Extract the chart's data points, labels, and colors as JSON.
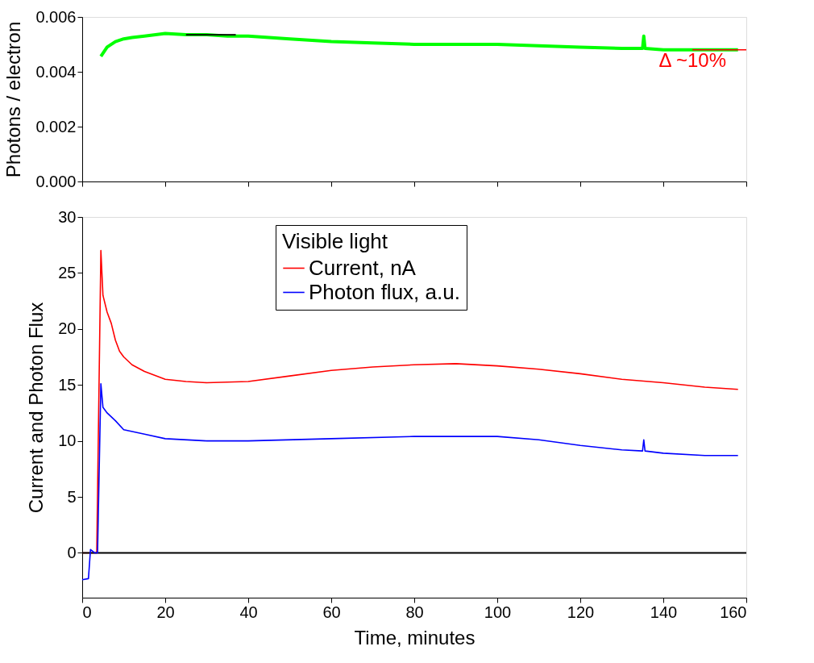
{
  "chart_data": [
    {
      "type": "line",
      "ylabel": "Photons / electron",
      "xlim": [
        0,
        160
      ],
      "xticks": [
        0,
        20,
        40,
        60,
        80,
        100,
        120,
        140,
        160
      ],
      "ylim": [
        0,
        0.006
      ],
      "yticks": [
        {
          "value": 0,
          "label": "0.000"
        },
        {
          "value": 0.002,
          "label": "0.002"
        },
        {
          "value": 0.004,
          "label": "0.004"
        },
        {
          "value": 0.006,
          "label": "0.006"
        }
      ],
      "tick_labels": "y",
      "grid": false,
      "series": [
        {
          "color": "#00ff00",
          "x": [
            4.5,
            6,
            8,
            10,
            12,
            15,
            20,
            25,
            30,
            35,
            40,
            50,
            60,
            70,
            80,
            90,
            100,
            110,
            120,
            130,
            135,
            135.3,
            135.6,
            140,
            150,
            158
          ],
          "values": [
            0.00456,
            0.0049,
            0.0051,
            0.0052,
            0.00525,
            0.0053,
            0.0054,
            0.00535,
            0.00535,
            0.0053,
            0.0053,
            0.0052,
            0.0051,
            0.00505,
            0.005,
            0.005,
            0.005,
            0.00495,
            0.0049,
            0.00485,
            0.00485,
            0.0053,
            0.00485,
            0.0048,
            0.0048,
            0.0048
          ]
        },
        {
          "color": "#000000",
          "x": [
            25,
            37
          ],
          "values": [
            0.00535,
            0.00535
          ]
        },
        {
          "color": "#ff0000",
          "x": [
            147,
            160
          ],
          "values": [
            0.0048,
            0.0048
          ]
        }
      ],
      "annotations": [
        "Δ ~10%"
      ]
    },
    {
      "type": "line",
      "xlabel": "Time, minutes",
      "ylabel": "Current and Photon Flux",
      "xlim": [
        0,
        160
      ],
      "xticks": [
        0,
        20,
        40,
        60,
        80,
        100,
        120,
        140,
        160
      ],
      "ylim": [
        -4,
        30
      ],
      "yticks": [
        0,
        5,
        10,
        15,
        20,
        25,
        30
      ],
      "grid": false,
      "legend": "top",
      "legend_title": "Visible light",
      "ref_lines": [
        {
          "axis": "y",
          "value": 0,
          "color": "#000000"
        }
      ],
      "series": [
        {
          "name": "Current, nA",
          "color": "#ff0000",
          "x": [
            0,
            3.5,
            4.5,
            5,
            6,
            7,
            8,
            9,
            10,
            12,
            15,
            20,
            25,
            30,
            40,
            50,
            60,
            70,
            80,
            90,
            100,
            110,
            120,
            130,
            140,
            150,
            158
          ],
          "values": [
            0,
            0,
            27,
            23,
            21.5,
            20.5,
            19,
            18,
            17.5,
            16.8,
            16.2,
            15.5,
            15.3,
            15.2,
            15.3,
            15.8,
            16.3,
            16.6,
            16.8,
            16.9,
            16.7,
            16.4,
            16.0,
            15.5,
            15.2,
            14.8,
            14.6
          ]
        },
        {
          "name": "Photon flux, a.u.",
          "color": "#0000ff",
          "x": [
            0,
            1.5,
            2,
            3,
            3.7,
            4.5,
            5,
            6,
            8,
            10,
            15,
            20,
            30,
            40,
            60,
            80,
            100,
            110,
            120,
            130,
            135,
            135.3,
            135.6,
            140,
            150,
            158
          ],
          "values": [
            -2.4,
            -2.3,
            0.3,
            0,
            0,
            15.1,
            13,
            12.5,
            11.8,
            11,
            10.6,
            10.2,
            10,
            10,
            10.2,
            10.4,
            10.4,
            10.1,
            9.6,
            9.2,
            9.1,
            10.1,
            9.1,
            8.9,
            8.7,
            8.7
          ]
        }
      ]
    }
  ]
}
